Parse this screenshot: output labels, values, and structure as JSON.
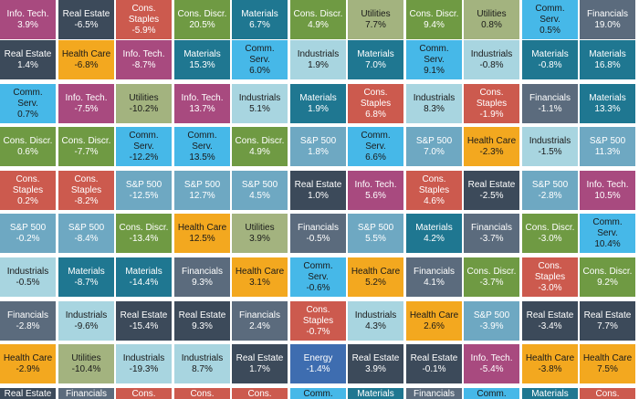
{
  "chart_data": {
    "type": "table",
    "layout": "sector returns quilt grid, 11 columns; each cell is one sector's return in a period, ranked",
    "sector_colors": {
      "Info. Tech.": "#a84a7f",
      "Real Estate": "#3c4a5a",
      "Cons. Staples": "#cc5a4e",
      "Cons. Discr.": "#6f9a43",
      "Materials": "#1f7791",
      "Utilities": "#a3b37f",
      "Comm. Serv.": "#46b8e8",
      "Financials": "#5b6b7d",
      "Health Care": "#f3a81f",
      "Industrials": "#a8d5e0",
      "S&P 500": "#6ea8c2",
      "Energy": "#3e6db0"
    },
    "columns": [
      {
        "cells": [
          {
            "sector": "Info. Tech.",
            "value": "3.9%"
          },
          {
            "sector": "Real Estate",
            "value": "1.4%"
          },
          {
            "sector": "Comm. Serv.",
            "value": "0.7%"
          },
          {
            "sector": "Cons. Discr.",
            "value": "0.6%"
          },
          {
            "sector": "Cons. Staples",
            "value": "0.2%"
          },
          {
            "sector": "S&P 500",
            "value": "-0.2%"
          },
          {
            "sector": "Industrials",
            "value": "-0.5%"
          },
          {
            "sector": "Financials",
            "value": "-2.8%"
          },
          {
            "sector": "Health Care",
            "value": "-2.9%"
          },
          {
            "sector": "Real Estate",
            "value": ""
          }
        ]
      },
      {
        "cells": [
          {
            "sector": "Real Estate",
            "value": "-6.5%"
          },
          {
            "sector": "Health Care",
            "value": "-6.8%"
          },
          {
            "sector": "Info. Tech.",
            "value": "-7.5%"
          },
          {
            "sector": "Cons. Discr.",
            "value": "-7.7%"
          },
          {
            "sector": "Cons. Staples",
            "value": "-8.2%"
          },
          {
            "sector": "S&P 500",
            "value": "-8.4%"
          },
          {
            "sector": "Materials",
            "value": "-8.7%"
          },
          {
            "sector": "Industrials",
            "value": "-9.6%"
          },
          {
            "sector": "Utilities",
            "value": "-10.4%"
          },
          {
            "sector": "Financials",
            "value": ""
          }
        ]
      },
      {
        "cells": [
          {
            "sector": "Cons. Staples",
            "value": "-5.9%"
          },
          {
            "sector": "Info. Tech.",
            "value": "-8.7%"
          },
          {
            "sector": "Utilities",
            "value": "-10.2%"
          },
          {
            "sector": "Comm. Serv.",
            "value": "-12.2%"
          },
          {
            "sector": "S&P 500",
            "value": "-12.5%"
          },
          {
            "sector": "Cons. Discr.",
            "value": "-13.4%"
          },
          {
            "sector": "Materials",
            "value": "-14.4%"
          },
          {
            "sector": "Real Estate",
            "value": "-15.4%"
          },
          {
            "sector": "Industrials",
            "value": "-19.3%"
          },
          {
            "sector": "Cons.",
            "value": ""
          }
        ]
      },
      {
        "cells": [
          {
            "sector": "Cons. Discr.",
            "value": "20.5%"
          },
          {
            "sector": "Materials",
            "value": "15.3%"
          },
          {
            "sector": "Info. Tech.",
            "value": "13.7%"
          },
          {
            "sector": "Comm. Serv.",
            "value": "13.5%"
          },
          {
            "sector": "S&P 500",
            "value": "12.7%"
          },
          {
            "sector": "Health Care",
            "value": "12.5%"
          },
          {
            "sector": "Financials",
            "value": "9.3%"
          },
          {
            "sector": "Real Estate",
            "value": "9.3%"
          },
          {
            "sector": "Industrials",
            "value": "8.7%"
          },
          {
            "sector": "Cons.",
            "value": ""
          }
        ]
      },
      {
        "cells": [
          {
            "sector": "Materials",
            "value": "6.7%"
          },
          {
            "sector": "Comm. Serv.",
            "value": "6.0%"
          },
          {
            "sector": "Industrials",
            "value": "5.1%"
          },
          {
            "sector": "Cons. Discr.",
            "value": "4.9%"
          },
          {
            "sector": "S&P 500",
            "value": "4.5%"
          },
          {
            "sector": "Utilities",
            "value": "3.9%"
          },
          {
            "sector": "Health Care",
            "value": "3.1%"
          },
          {
            "sector": "Financials",
            "value": "2.4%"
          },
          {
            "sector": "Real Estate",
            "value": "1.7%"
          },
          {
            "sector": "Cons.",
            "value": ""
          }
        ]
      },
      {
        "cells": [
          {
            "sector": "Cons. Discr.",
            "value": "4.9%"
          },
          {
            "sector": "Industrials",
            "value": "1.9%"
          },
          {
            "sector": "Materials",
            "value": "1.9%"
          },
          {
            "sector": "S&P 500",
            "value": "1.8%"
          },
          {
            "sector": "Real Estate",
            "value": "1.0%"
          },
          {
            "sector": "Financials",
            "value": "-0.5%"
          },
          {
            "sector": "Comm. Serv.",
            "value": "-0.6%"
          },
          {
            "sector": "Cons. Staples",
            "value": "-0.7%"
          },
          {
            "sector": "Energy",
            "value": "-1.4%"
          },
          {
            "sector": "Comm. Serv.",
            "value": ""
          }
        ]
      },
      {
        "cells": [
          {
            "sector": "Utilities",
            "value": "7.7%"
          },
          {
            "sector": "Materials",
            "value": "7.0%"
          },
          {
            "sector": "Cons. Staples",
            "value": "6.8%"
          },
          {
            "sector": "Comm. Serv.",
            "value": "6.6%"
          },
          {
            "sector": "Info. Tech.",
            "value": "5.6%"
          },
          {
            "sector": "S&P 500",
            "value": "5.5%"
          },
          {
            "sector": "Health Care",
            "value": "5.2%"
          },
          {
            "sector": "Industrials",
            "value": "4.3%"
          },
          {
            "sector": "Real Estate",
            "value": "3.9%"
          },
          {
            "sector": "Materials",
            "value": ""
          }
        ]
      },
      {
        "cells": [
          {
            "sector": "Cons. Discr.",
            "value": "9.4%"
          },
          {
            "sector": "Comm. Serv.",
            "value": "9.1%"
          },
          {
            "sector": "Industrials",
            "value": "8.3%"
          },
          {
            "sector": "S&P 500",
            "value": "7.0%"
          },
          {
            "sector": "Cons. Staples",
            "value": "4.6%"
          },
          {
            "sector": "Materials",
            "value": "4.2%"
          },
          {
            "sector": "Financials",
            "value": "4.1%"
          },
          {
            "sector": "Health Care",
            "value": "2.6%"
          },
          {
            "sector": "Real Estate",
            "value": "-0.1%"
          },
          {
            "sector": "Financials",
            "value": ""
          }
        ]
      },
      {
        "cells": [
          {
            "sector": "Utilities",
            "value": "0.8%"
          },
          {
            "sector": "Industrials",
            "value": "-0.8%"
          },
          {
            "sector": "Cons. Staples",
            "value": "-1.9%"
          },
          {
            "sector": "Health Care",
            "value": "-2.3%"
          },
          {
            "sector": "Real Estate",
            "value": "-2.5%"
          },
          {
            "sector": "Financials",
            "value": "-3.7%"
          },
          {
            "sector": "Cons. Discr.",
            "value": "-3.7%"
          },
          {
            "sector": "S&P 500",
            "value": "-3.9%"
          },
          {
            "sector": "Info. Tech.",
            "value": "-5.4%"
          },
          {
            "sector": "Comm.",
            "value": ""
          }
        ]
      },
      {
        "cells": [
          {
            "sector": "Comm. Serv.",
            "value": "0.5%"
          },
          {
            "sector": "Materials",
            "value": "-0.8%"
          },
          {
            "sector": "Financials",
            "value": "-1.1%"
          },
          {
            "sector": "Industrials",
            "value": "-1.5%"
          },
          {
            "sector": "S&P 500",
            "value": "-2.8%"
          },
          {
            "sector": "Cons. Discr.",
            "value": "-3.0%"
          },
          {
            "sector": "Cons. Staples",
            "value": "-3.0%"
          },
          {
            "sector": "Real Estate",
            "value": "-3.4%"
          },
          {
            "sector": "Health Care",
            "value": "-3.8%"
          },
          {
            "sector": "Materials",
            "value": ""
          }
        ]
      },
      {
        "cells": [
          {
            "sector": "Financials",
            "value": "19.0%"
          },
          {
            "sector": "Materials",
            "value": "16.8%"
          },
          {
            "sector": "Materials",
            "value": "13.3%"
          },
          {
            "sector": "S&P 500",
            "value": "11.3%"
          },
          {
            "sector": "Info. Tech.",
            "value": "10.5%"
          },
          {
            "sector": "Comm. Serv.",
            "value": "10.4%"
          },
          {
            "sector": "Cons. Discr.",
            "value": "9.2%"
          },
          {
            "sector": "Real Estate",
            "value": "7.7%"
          },
          {
            "sector": "Health Care",
            "value": "7.5%"
          },
          {
            "sector": "Cons.",
            "value": ""
          }
        ]
      }
    ]
  }
}
